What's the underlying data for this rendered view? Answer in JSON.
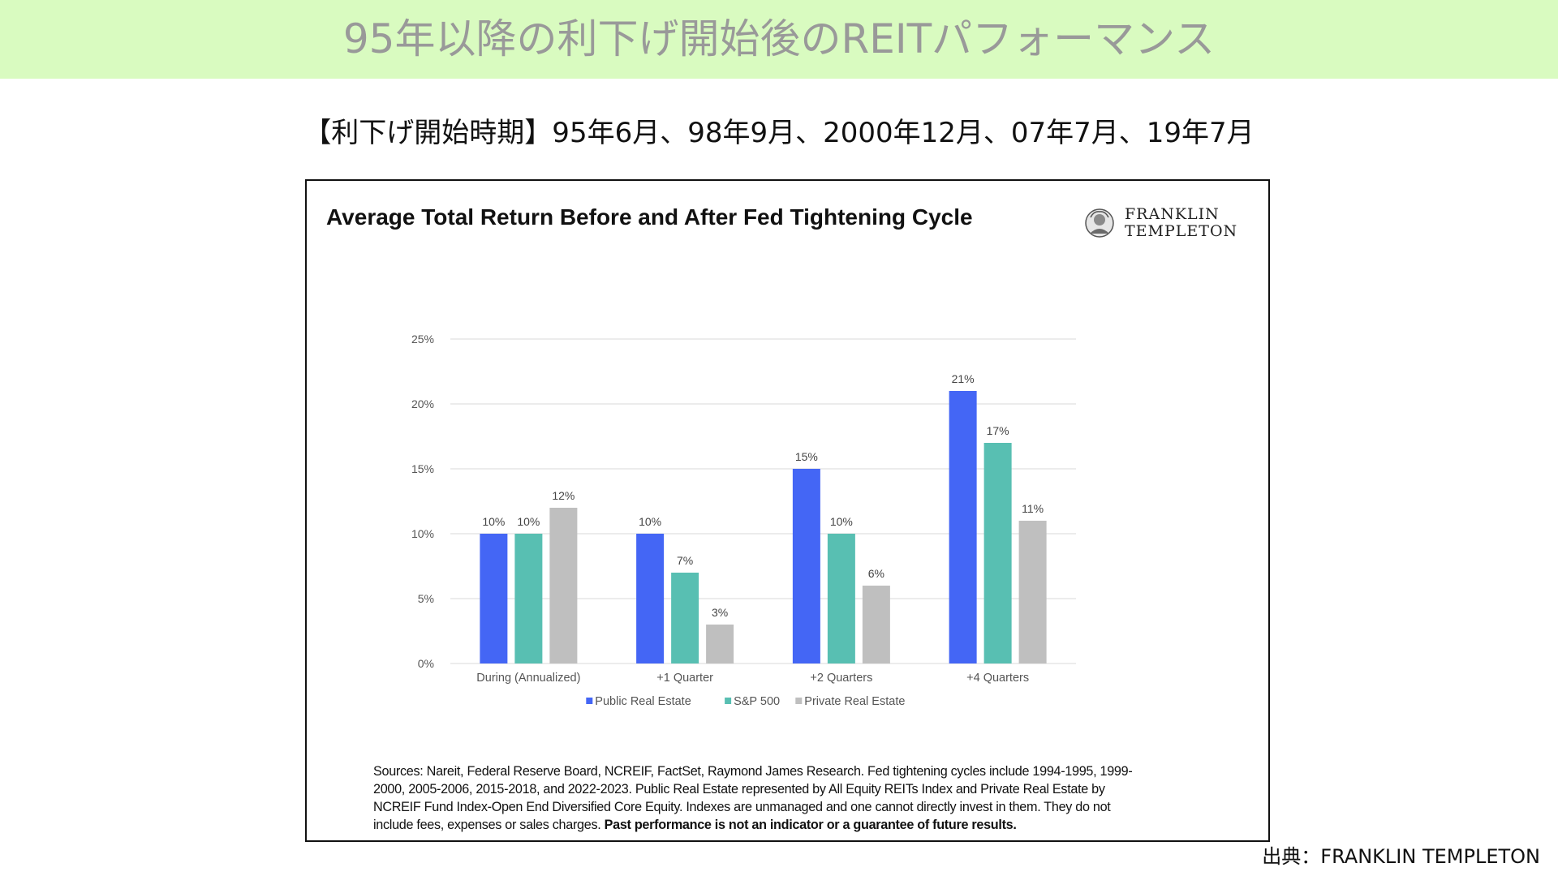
{
  "header": {
    "title": "95年以降の利下げ開始後のREITパフォーマンス",
    "subtitle": "【利下げ開始時期】95年6月、98年9月、2000年12月、07年7月、19年7月"
  },
  "logo": {
    "line1": "FRANKLIN",
    "line2": "TEMPLETON"
  },
  "sources": {
    "text": "Sources: Nareit, Federal Reserve Board, NCREIF, FactSet, Raymond James Research. Fed tightening cycles include 1994-1995, 1999-2000, 2005-2006, 2015-2018, and 2022-2023. Public Real Estate represented by All Equity REITs Index and Private Real Estate by NCREIF Fund Index-Open End Diversified Core Equity. Indexes are unmanaged and one cannot directly invest in them. They do not include fees, expenses or sales charges.",
    "disclaimer": "Past performance is not an indicator or a guarantee of future results."
  },
  "credit": "出典：FRANKLIN TEMPLETON",
  "chart_data": {
    "type": "bar",
    "title": "Average Total Return Before and After Fed Tightening Cycle",
    "xlabel": "",
    "ylabel": "",
    "ylim": [
      0,
      25
    ],
    "y_ticks": [
      0,
      5,
      10,
      15,
      20,
      25
    ],
    "y_tick_labels": [
      "0%",
      "5%",
      "10%",
      "15%",
      "20%",
      "25%"
    ],
    "grid": true,
    "legend_position": "bottom",
    "categories": [
      "During (Annualized)",
      "+1 Quarter",
      "+2 Quarters",
      "+4 Quarters"
    ],
    "series": [
      {
        "name": "Public Real Estate",
        "color": "#4466f5",
        "values": [
          10,
          10,
          15,
          21
        ],
        "labels": [
          "10%",
          "10%",
          "15%",
          "21%"
        ]
      },
      {
        "name": "S&P 500",
        "color": "#58bfb2",
        "values": [
          10,
          7,
          10,
          17
        ],
        "labels": [
          "10%",
          "7%",
          "10%",
          "17%"
        ]
      },
      {
        "name": "Private Real Estate",
        "color": "#bfbfbf",
        "values": [
          12,
          3,
          6,
          11
        ],
        "labels": [
          "12%",
          "3%",
          "6%",
          "11%"
        ]
      }
    ]
  }
}
